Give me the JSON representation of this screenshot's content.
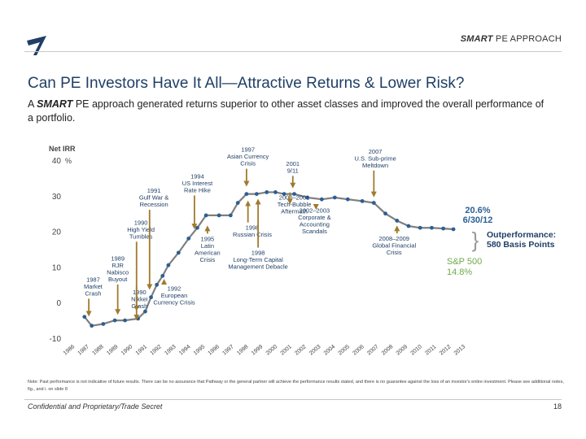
{
  "header": {
    "section_bold": "SMART",
    "section_rest": " PE APPROACH"
  },
  "title": "Can PE Investors Have It All—Attractive Returns & Lower Risk?",
  "subtitle": {
    "pre": "A ",
    "bold": "SMART",
    "post": " PE approach generated returns superior to other asset classes and improved the overall performance of a portfolio."
  },
  "note": "Note: Past performance is not indicative of future results. There can be no assurance that Pathway or the general partner will achieve the performance results stated, and there is no guarantee against the loss of an investor's entire investment. Please see additional notes, fig., and i. on slide 8",
  "footer": {
    "confidential": "Confidential and Proprietary/Trade Secret",
    "page": "18"
  },
  "colors": {
    "line": "#7f7f7f",
    "dot": "#2b5f96",
    "arrow": "#a07a2e",
    "annotation": "#1f3f66",
    "sp": "#6fa94a",
    "axis": "#444444"
  },
  "chart_data": {
    "type": "line",
    "ylabel": "Net IRR",
    "yunit": "%",
    "ylim": [
      -10,
      40
    ],
    "yticks": [
      -10,
      0,
      10,
      20,
      30,
      40
    ],
    "x": [
      "1986",
      "1987",
      "1988",
      "1989",
      "1990",
      "1991",
      "1992",
      "1993",
      "1994",
      "1995",
      "1996",
      "1997",
      "1998",
      "1999",
      "2000",
      "2001",
      "2002",
      "2003",
      "2004",
      "2005",
      "2006",
      "2007",
      "2008",
      "2009",
      "2010",
      "2011",
      "2012",
      "2013"
    ],
    "series": [
      {
        "name": "Net IRR",
        "points": [
          {
            "x": 1987.0,
            "y": -4.0
          },
          {
            "x": 1987.5,
            "y": -6.5
          },
          {
            "x": 1988.3,
            "y": -6.0
          },
          {
            "x": 1989.1,
            "y": -5.0
          },
          {
            "x": 1989.8,
            "y": -5.0
          },
          {
            "x": 1990.7,
            "y": -4.5
          },
          {
            "x": 1991.2,
            "y": -2.5
          },
          {
            "x": 1991.6,
            "y": 1.5
          },
          {
            "x": 1992.0,
            "y": 5.0
          },
          {
            "x": 1992.4,
            "y": 7.5
          },
          {
            "x": 1992.8,
            "y": 10.5
          },
          {
            "x": 1993.5,
            "y": 14.0
          },
          {
            "x": 1994.2,
            "y": 18.0
          },
          {
            "x": 1994.8,
            "y": 21.0
          },
          {
            "x": 1995.4,
            "y": 24.5
          },
          {
            "x": 1996.3,
            "y": 24.5
          },
          {
            "x": 1997.1,
            "y": 24.5
          },
          {
            "x": 1997.6,
            "y": 28.0
          },
          {
            "x": 1998.2,
            "y": 30.5
          },
          {
            "x": 1998.9,
            "y": 30.5
          },
          {
            "x": 1999.6,
            "y": 31.0
          },
          {
            "x": 2000.2,
            "y": 31.0
          },
          {
            "x": 2000.8,
            "y": 30.5
          },
          {
            "x": 2001.5,
            "y": 30.5
          },
          {
            "x": 2002.4,
            "y": 29.5
          },
          {
            "x": 2003.4,
            "y": 29.0
          },
          {
            "x": 2004.3,
            "y": 29.5
          },
          {
            "x": 2005.2,
            "y": 29.0
          },
          {
            "x": 2006.2,
            "y": 28.5
          },
          {
            "x": 2007.0,
            "y": 28.0
          },
          {
            "x": 2007.8,
            "y": 25.0
          },
          {
            "x": 2008.6,
            "y": 23.0
          },
          {
            "x": 2009.4,
            "y": 21.5
          },
          {
            "x": 2010.2,
            "y": 21.0
          },
          {
            "x": 2011.0,
            "y": 21.0
          },
          {
            "x": 2011.8,
            "y": 20.8
          },
          {
            "x": 2012.5,
            "y": 20.6
          }
        ]
      }
    ],
    "callouts": [
      {
        "lines": [
          "20.6%",
          "6/30/12"
        ],
        "type": "value"
      },
      {
        "lines": [
          "Outperformance:",
          "580 Basis Points"
        ],
        "type": "outperformance"
      },
      {
        "lines": [
          "S&P 500",
          "14.8%"
        ],
        "type": "sp"
      }
    ],
    "annotations": [
      {
        "lines": [
          "1987",
          "Market",
          "Crash"
        ],
        "tx": 1987.6,
        "ty": 2.0,
        "ax": 1987.3,
        "ay": -4.5
      },
      {
        "lines": [
          "1989",
          "RJR",
          "Nabisco",
          "Buyout"
        ],
        "tx": 1989.3,
        "ty": 6.0,
        "ax": 1989.3,
        "ay": -4.0
      },
      {
        "lines": [
          "1990",
          "High Yield",
          "Tumbles"
        ],
        "tx": 1990.9,
        "ty": 18.0,
        "ax": 1990.6,
        "ay": -3.0
      },
      {
        "lines": [
          "1991",
          "Gulf War &",
          "Recession"
        ],
        "tx": 1991.8,
        "ty": 27.0,
        "ax": 1991.5,
        "ay": 3.0
      },
      {
        "lines": [
          "1990",
          "Nikkei",
          "Crash"
        ],
        "tx": 1990.8,
        "ty": -1.5,
        "ax": 1990.6,
        "ay": -3.0,
        "dir": "up"
      },
      {
        "lines": [
          "1992",
          "European",
          "Currency Crisis"
        ],
        "tx": 1993.2,
        "ty": -0.5,
        "ax": 1992.5,
        "ay": 7.0,
        "dir": "up"
      },
      {
        "lines": [
          "1994",
          "US Interest",
          "Rate Hike"
        ],
        "tx": 1994.8,
        "ty": 31.0,
        "ax": 1994.6,
        "ay": 20.0
      },
      {
        "lines": [
          "1995",
          "Latin",
          "American",
          "Crisis"
        ],
        "tx": 1995.5,
        "ty": 11.5,
        "ax": 1995.5,
        "ay": 22.0,
        "dir": "up"
      },
      {
        "lines": [
          "1997",
          "Asian Currency",
          "Crisis"
        ],
        "tx": 1998.3,
        "ty": 38.5,
        "ax": 1998.2,
        "ay": 32.0
      },
      {
        "lines": [
          "1998",
          "Russian Crisis"
        ],
        "tx": 1998.6,
        "ty": 18.5,
        "ax": 1998.3,
        "ay": 29.0,
        "dir": "up"
      },
      {
        "lines": [
          "1998",
          "Long-Term Capital",
          "Management Debacle"
        ],
        "tx": 1999.0,
        "ty": 9.5,
        "ax": 1999.0,
        "ay": 29.5,
        "dir": "up"
      },
      {
        "lines": [
          "2000–2001",
          "Tech-Bubble",
          "Aftermath"
        ],
        "tx": 2001.5,
        "ty": 25.0,
        "ax": 2001.2,
        "ay": 29.5,
        "dir": "up"
      },
      {
        "lines": [
          "2001",
          "9/11"
        ],
        "tx": 2001.4,
        "ty": 36.5,
        "ax": 2001.4,
        "ay": 31.5
      },
      {
        "lines": [
          "2002–2003",
          "Corporate &",
          "Accounting",
          "Scandals"
        ],
        "tx": 2002.9,
        "ty": 19.5,
        "ax": 2003.0,
        "ay": 28.0,
        "dir": "up"
      },
      {
        "lines": [
          "2007",
          "U.S. Sub-prime",
          "Meltdown"
        ],
        "tx": 2007.1,
        "ty": 38.0,
        "ax": 2007.0,
        "ay": 29.0
      },
      {
        "lines": [
          "2008–2009",
          "Global Financial",
          "Crisis"
        ],
        "tx": 2008.4,
        "ty": 13.5,
        "ax": 2008.6,
        "ay": 22.0,
        "dir": "up"
      }
    ]
  }
}
